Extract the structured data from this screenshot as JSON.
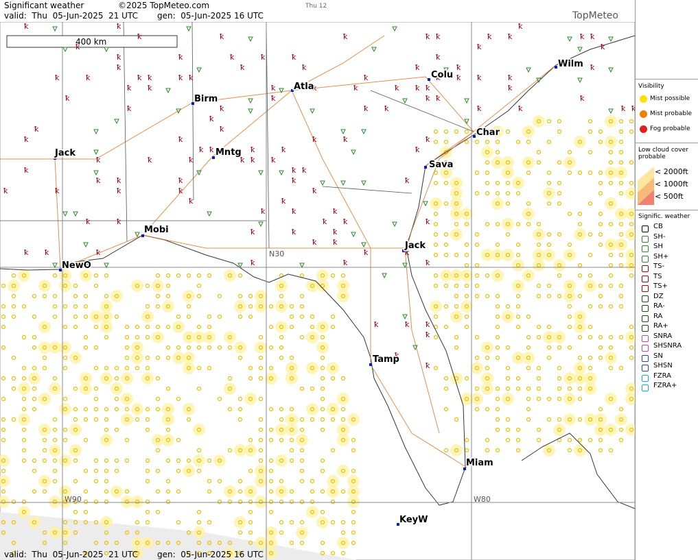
{
  "header": {
    "title": "Significant weather",
    "copyright": "©2025 TopMeteo.com",
    "tab": "Thu 12",
    "valid": "valid:  Thu  05-Jun-2025  21 UTC",
    "generated": "gen:  05-Jun-2025 16 UTC",
    "logo": "TopMeteo"
  },
  "map": {
    "scale": "400 km",
    "grid": {
      "n30": "N30",
      "w90": "W90",
      "w80": "W80"
    },
    "cities": [
      "Birm",
      "Atla",
      "Colu",
      "Wilm",
      "Char",
      "Sava",
      "Jack",
      "Mntg",
      "Mobi",
      "NewO",
      "Jack",
      "Tamp",
      "Miam",
      "KeyW"
    ]
  },
  "footer": {
    "valid": "valid:  Thu  05-Jun-2025  21 UTC",
    "generated": "gen:  05-Jun-2025 16 UTC"
  },
  "legend": {
    "visibility": {
      "title": "Visibility",
      "items": [
        "Mist possible",
        "Mist probable",
        "Fog probable"
      ]
    },
    "low_cloud": {
      "title": "Low cloud cover probable",
      "items": [
        "< 2000ft",
        "< 1000ft",
        "<  500ft"
      ]
    },
    "weather": {
      "title": "Signific. weather",
      "items": [
        "CB",
        "SH-",
        "SH",
        "SH+",
        "TS-",
        "TS",
        "TS+",
        "DZ",
        "RA-",
        "RA",
        "RA+",
        "SNRA",
        "SHSNRA",
        "SN",
        "SHSN",
        "FZRA",
        "FZRA+"
      ]
    }
  }
}
